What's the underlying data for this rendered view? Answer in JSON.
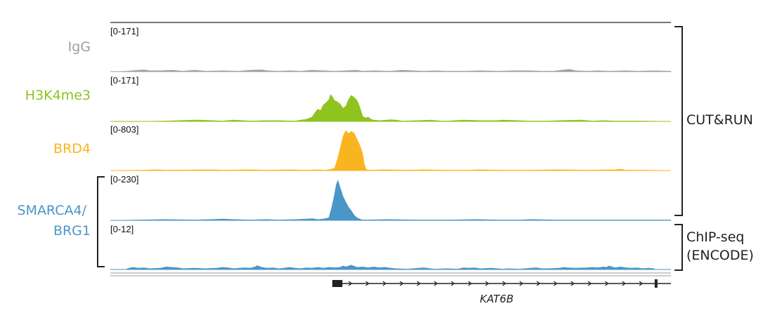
{
  "chart_data": {
    "type": "area",
    "x_range": [
      0,
      100
    ],
    "tracks": [
      {
        "name": "IgG",
        "range_label": "[0-171]",
        "color": "#9e9e9e",
        "ymax": 171,
        "points": [
          [
            0,
            0
          ],
          [
            3,
            1
          ],
          [
            5,
            3
          ],
          [
            6,
            4
          ],
          [
            7,
            2
          ],
          [
            9,
            2
          ],
          [
            11,
            3
          ],
          [
            13,
            1
          ],
          [
            15,
            3
          ],
          [
            17,
            1
          ],
          [
            20,
            2
          ],
          [
            23,
            1
          ],
          [
            25,
            3
          ],
          [
            27,
            4
          ],
          [
            28,
            2
          ],
          [
            30,
            1
          ],
          [
            32,
            2
          ],
          [
            34,
            1
          ],
          [
            36,
            3
          ],
          [
            38,
            2
          ],
          [
            40,
            1
          ],
          [
            42,
            2
          ],
          [
            44,
            3
          ],
          [
            45,
            1
          ],
          [
            47,
            2
          ],
          [
            50,
            1
          ],
          [
            52,
            3
          ],
          [
            54,
            2
          ],
          [
            56,
            1
          ],
          [
            58,
            2
          ],
          [
            60,
            1
          ],
          [
            63,
            1
          ],
          [
            66,
            2
          ],
          [
            69,
            1
          ],
          [
            72,
            2
          ],
          [
            75,
            2
          ],
          [
            77,
            1
          ],
          [
            79,
            1
          ],
          [
            81,
            4
          ],
          [
            82,
            5
          ],
          [
            83,
            2
          ],
          [
            85,
            1
          ],
          [
            87,
            2
          ],
          [
            89,
            1
          ],
          [
            92,
            2
          ],
          [
            94,
            1
          ],
          [
            97,
            2
          ],
          [
            100,
            1
          ]
        ]
      },
      {
        "name": "H3K4me3",
        "range_label": "[0-171]",
        "color": "#8fc31f",
        "ymax": 171,
        "points": [
          [
            0,
            0
          ],
          [
            5,
            0
          ],
          [
            10,
            1
          ],
          [
            15,
            3
          ],
          [
            16,
            3
          ],
          [
            20,
            1
          ],
          [
            22,
            3
          ],
          [
            25,
            1
          ],
          [
            28,
            2
          ],
          [
            30,
            2
          ],
          [
            33,
            1
          ],
          [
            34,
            3
          ],
          [
            35,
            5
          ],
          [
            36,
            10
          ],
          [
            36.5,
            20
          ],
          [
            37,
            28
          ],
          [
            37.5,
            25
          ],
          [
            38,
            38
          ],
          [
            38.5,
            43
          ],
          [
            39,
            50
          ],
          [
            39.3,
            62
          ],
          [
            39.7,
            55
          ],
          [
            40,
            48
          ],
          [
            40.5,
            45
          ],
          [
            41,
            40
          ],
          [
            41.5,
            30
          ],
          [
            42,
            35
          ],
          [
            42.5,
            50
          ],
          [
            43,
            60
          ],
          [
            43.5,
            55
          ],
          [
            44,
            48
          ],
          [
            44.3,
            40
          ],
          [
            44.7,
            25
          ],
          [
            45,
            12
          ],
          [
            45.5,
            8
          ],
          [
            46,
            10
          ],
          [
            46.5,
            5
          ],
          [
            47,
            3
          ],
          [
            48,
            2
          ],
          [
            50,
            4
          ],
          [
            51,
            3
          ],
          [
            52,
            1
          ],
          [
            55,
            2
          ],
          [
            57,
            3
          ],
          [
            59,
            1
          ],
          [
            60,
            1
          ],
          [
            63,
            3
          ],
          [
            66,
            2
          ],
          [
            69,
            2
          ],
          [
            70,
            3
          ],
          [
            75,
            1
          ],
          [
            78,
            1
          ],
          [
            80,
            2
          ],
          [
            84,
            3
          ],
          [
            86,
            1
          ],
          [
            88,
            2
          ],
          [
            90,
            1
          ],
          [
            95,
            1
          ],
          [
            100,
            0
          ]
        ]
      },
      {
        "name": "BRD4",
        "range_label": "[0-803]",
        "color": "#f9b520",
        "ymax": 803,
        "points": [
          [
            0,
            0
          ],
          [
            6,
            1
          ],
          [
            8,
            2
          ],
          [
            10,
            1
          ],
          [
            18,
            2
          ],
          [
            20,
            1
          ],
          [
            25,
            2
          ],
          [
            28,
            1
          ],
          [
            32,
            2
          ],
          [
            35,
            1
          ],
          [
            37,
            2
          ],
          [
            38,
            1
          ],
          [
            39,
            2
          ],
          [
            40,
            5
          ],
          [
            40.5,
            25
          ],
          [
            41,
            50
          ],
          [
            41.5,
            78
          ],
          [
            42,
            92
          ],
          [
            42.5,
            85
          ],
          [
            43,
            90
          ],
          [
            43.5,
            86
          ],
          [
            44,
            72
          ],
          [
            44.5,
            58
          ],
          [
            45,
            40
          ],
          [
            45.3,
            15
          ],
          [
            45.6,
            3
          ],
          [
            46,
            1
          ],
          [
            49,
            2
          ],
          [
            53,
            1
          ],
          [
            56,
            2
          ],
          [
            60,
            1
          ],
          [
            64,
            1
          ],
          [
            66,
            2
          ],
          [
            70,
            1
          ],
          [
            75,
            1
          ],
          [
            80,
            2
          ],
          [
            85,
            1
          ],
          [
            90,
            2
          ],
          [
            91,
            3
          ],
          [
            92,
            1
          ],
          [
            95,
            1
          ],
          [
            100,
            0
          ]
        ]
      },
      {
        "name": "SMARCA4/ BRG1",
        "range_label": "[0-230]",
        "color": "#4a96c8",
        "ymax": 230,
        "points": [
          [
            0,
            0
          ],
          [
            5,
            1
          ],
          [
            10,
            2
          ],
          [
            15,
            1
          ],
          [
            18,
            2
          ],
          [
            20,
            3
          ],
          [
            22,
            2
          ],
          [
            25,
            1
          ],
          [
            28,
            2
          ],
          [
            30,
            1
          ],
          [
            33,
            2
          ],
          [
            35,
            3
          ],
          [
            36,
            4
          ],
          [
            37,
            2
          ],
          [
            38,
            3
          ],
          [
            39,
            6
          ],
          [
            39.5,
            30
          ],
          [
            40,
            60
          ],
          [
            40.3,
            82
          ],
          [
            40.6,
            92
          ],
          [
            41,
            75
          ],
          [
            41.5,
            55
          ],
          [
            42,
            42
          ],
          [
            42.5,
            30
          ],
          [
            43,
            22
          ],
          [
            43.5,
            12
          ],
          [
            44,
            6
          ],
          [
            44.5,
            3
          ],
          [
            45,
            1
          ],
          [
            50,
            2
          ],
          [
            55,
            1
          ],
          [
            58,
            1
          ],
          [
            60,
            1
          ],
          [
            65,
            2
          ],
          [
            70,
            1
          ],
          [
            73,
            1
          ],
          [
            75,
            2
          ],
          [
            80,
            1
          ],
          [
            85,
            1
          ],
          [
            90,
            1
          ],
          [
            95,
            1
          ],
          [
            100,
            1
          ]
        ]
      },
      {
        "name": "ChIP-seq (ENCODE)",
        "range_label": "[0-12]",
        "color": "#4a96c8",
        "ymax": 12,
        "points": [
          [
            3,
            2
          ],
          [
            4,
            5
          ],
          [
            5,
            3
          ],
          [
            6,
            4
          ],
          [
            7,
            2
          ],
          [
            9,
            3
          ],
          [
            10,
            6
          ],
          [
            12,
            4
          ],
          [
            13,
            2
          ],
          [
            15,
            3
          ],
          [
            17,
            2
          ],
          [
            19,
            3
          ],
          [
            20,
            5
          ],
          [
            21,
            4
          ],
          [
            22,
            2
          ],
          [
            23,
            3
          ],
          [
            24,
            4
          ],
          [
            25,
            3
          ],
          [
            25.8,
            6
          ],
          [
            26.2,
            9
          ],
          [
            27,
            5
          ],
          [
            28,
            3
          ],
          [
            29,
            4
          ],
          [
            30,
            2
          ],
          [
            31,
            3
          ],
          [
            32,
            5
          ],
          [
            33,
            3
          ],
          [
            34,
            2
          ],
          [
            35,
            4
          ],
          [
            36,
            3
          ],
          [
            37,
            5
          ],
          [
            38,
            3
          ],
          [
            39,
            5
          ],
          [
            40,
            4
          ],
          [
            41,
            5
          ],
          [
            41.5,
            8
          ],
          [
            42,
            6
          ],
          [
            43,
            10
          ],
          [
            44,
            5
          ],
          [
            45,
            6
          ],
          [
            46,
            4
          ],
          [
            47,
            6
          ],
          [
            48,
            4
          ],
          [
            49,
            5
          ],
          [
            50,
            3
          ],
          [
            51,
            2
          ],
          [
            53,
            1
          ],
          [
            55,
            3
          ],
          [
            56,
            4
          ],
          [
            57,
            2
          ],
          [
            58,
            1
          ],
          [
            60,
            2
          ],
          [
            62,
            1
          ],
          [
            63,
            4
          ],
          [
            64,
            3
          ],
          [
            65,
            4
          ],
          [
            66,
            2
          ],
          [
            68,
            3
          ],
          [
            70,
            1
          ],
          [
            71,
            2
          ],
          [
            73,
            1
          ],
          [
            75,
            3
          ],
          [
            76,
            4
          ],
          [
            77,
            2
          ],
          [
            78,
            2
          ],
          [
            80,
            3
          ],
          [
            81,
            5
          ],
          [
            81.5,
            4
          ],
          [
            83,
            3
          ],
          [
            85,
            4
          ],
          [
            86,
            5
          ],
          [
            87,
            4
          ],
          [
            88,
            6
          ],
          [
            88.5,
            5
          ],
          [
            89,
            8
          ],
          [
            90,
            4
          ],
          [
            91,
            6
          ],
          [
            92,
            4
          ],
          [
            93,
            3
          ],
          [
            94,
            4
          ],
          [
            95,
            2
          ],
          [
            96,
            3
          ],
          [
            97,
            2
          ]
        ]
      }
    ],
    "groups": [
      {
        "label": "CUT&RUN"
      },
      {
        "label": "ChIP-seq\n(ENCODE)"
      }
    ],
    "gene": {
      "name": "KAT6B",
      "start": 39.6,
      "end": 100,
      "first_exon": [
        39.6,
        41.4
      ],
      "last_exon": [
        97.1,
        97.6
      ]
    }
  }
}
